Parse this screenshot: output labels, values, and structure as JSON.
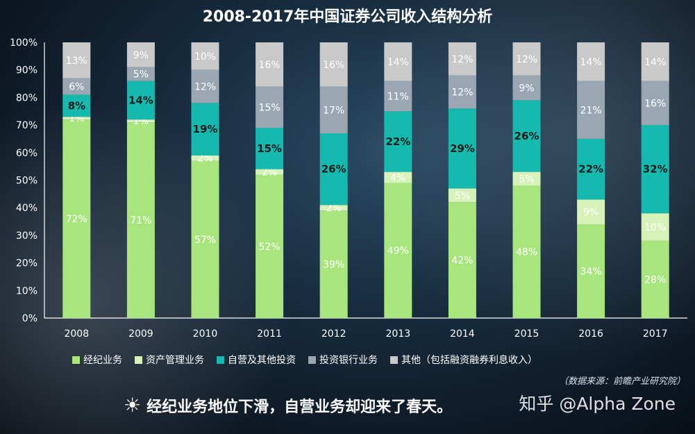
{
  "title": "2008-2017年中国证券公司收入结构分析",
  "colors": {
    "经纪业务": "#a8e57d",
    "资产管理业务": "#d6f2b9",
    "自营及其他投资": "#16b9ae",
    "投资银行业务": "#9aa7b3",
    "其他": "#c9c9c9"
  },
  "chart_data": {
    "type": "bar",
    "stacked": true,
    "categories": [
      "2008",
      "2009",
      "2010",
      "2011",
      "2012",
      "2013",
      "2014",
      "2015",
      "2016",
      "2017"
    ],
    "ylim": [
      0,
      100
    ],
    "yticks": [
      "0%",
      "10%",
      "20%",
      "30%",
      "40%",
      "50%",
      "60%",
      "70%",
      "80%",
      "90%",
      "100%"
    ],
    "series": [
      {
        "name": "经纪业务",
        "values": [
          72,
          71,
          57,
          52,
          39,
          49,
          42,
          48,
          34,
          28
        ],
        "labels": [
          "72%",
          "71%",
          "57%",
          "52%",
          "39%",
          "49%",
          "42%",
          "48%",
          "34%",
          "28%"
        ]
      },
      {
        "name": "资产管理业务",
        "values": [
          1,
          1,
          2,
          2,
          2,
          4,
          5,
          5,
          9,
          10
        ],
        "labels": [
          "1%",
          "1%",
          "2%",
          "2%",
          "2%",
          "4%",
          "5%",
          "5%",
          "9%",
          "10%"
        ]
      },
      {
        "name": "自营及其他投资",
        "values": [
          8,
          14,
          19,
          15,
          26,
          22,
          29,
          26,
          22,
          32
        ],
        "labels": [
          "8%",
          "14%",
          "19%",
          "15%",
          "26%",
          "22%",
          "29%",
          "26%",
          "22%",
          "32%"
        ]
      },
      {
        "name": "投资银行业务",
        "values": [
          6,
          5,
          12,
          15,
          17,
          11,
          12,
          9,
          21,
          16
        ],
        "labels": [
          "6%",
          "5%",
          "12%",
          "15%",
          "17%",
          "11%",
          "12%",
          "9%",
          "21%",
          "16%"
        ]
      },
      {
        "name": "其他",
        "values": [
          13,
          9,
          10,
          16,
          16,
          14,
          12,
          12,
          14,
          14
        ],
        "labels": [
          "13%",
          "9%",
          "10%",
          "16%",
          "16%",
          "14%",
          "12%",
          "12%",
          "14%",
          "14%"
        ]
      }
    ]
  },
  "legend": [
    {
      "label": "经纪业务"
    },
    {
      "label": "资产管理业务"
    },
    {
      "label": "自营及其他投资"
    },
    {
      "label": "投资银行业务"
    },
    {
      "label": "其他（包括融资融券利息收入）"
    }
  ],
  "source": "（数据来源：前瞻产业研究院）",
  "footer": {
    "icon": "sun-icon",
    "text": "经纪业务地位下滑，自营业务却迎来了春天。"
  },
  "watermark": "知乎 @Alpha Zone"
}
